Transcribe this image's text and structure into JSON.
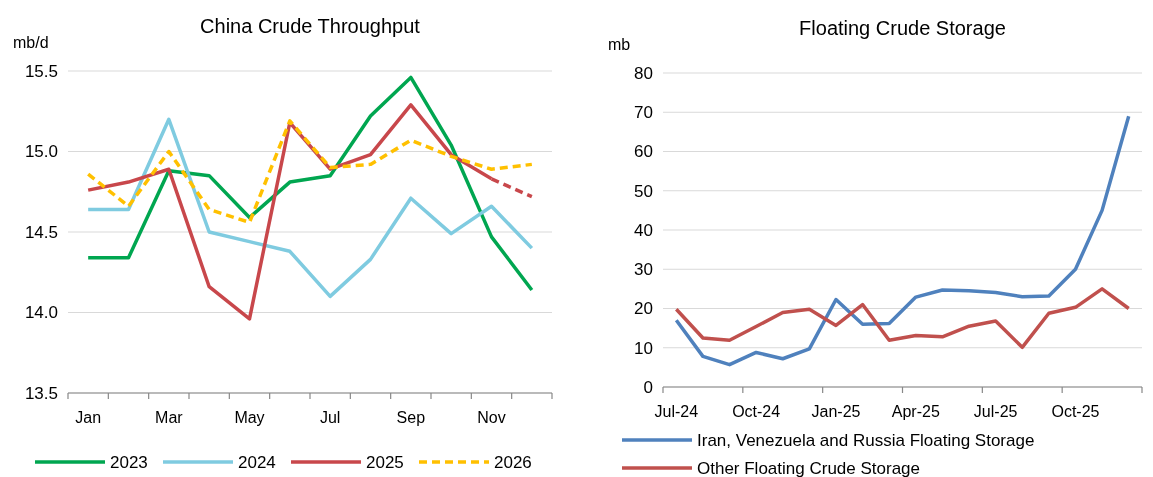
{
  "chart_data": [
    {
      "type": "line",
      "title": "China Crude Throughput",
      "ylabel": "mb/d",
      "categories": [
        "Jan",
        null,
        "Mar",
        null,
        "May",
        null,
        "Jul",
        null,
        "Sep",
        null,
        "Nov",
        null
      ],
      "ylim": [
        13.5,
        15.5
      ],
      "yticks": [
        13.5,
        {
          "value": 14,
          "label": "14.0"
        },
        14.5,
        {
          "value": 15,
          "label": "15.0"
        },
        15.5
      ],
      "grid": "y",
      "legend": "bottom",
      "marker": "none",
      "series": [
        {
          "name": "2023",
          "color": "#00a650",
          "values": [
            14.34,
            14.34,
            14.88,
            14.85,
            14.59,
            14.81,
            14.85,
            15.22,
            15.46,
            15.04,
            14.47,
            14.14
          ]
        },
        {
          "name": "2024",
          "color": "#7fcbe0",
          "values": [
            14.64,
            14.64,
            15.2,
            14.5,
            14.44,
            14.38,
            14.1,
            14.33,
            14.71,
            14.49,
            14.66,
            14.4
          ]
        },
        {
          "name": "2025",
          "color": "#c8474b",
          "values": [
            14.76,
            14.81,
            14.89,
            14.16,
            13.96,
            15.18,
            14.89,
            14.98,
            15.29,
            14.98,
            14.83,
            null
          ]
        },
        {
          "color": "#c8474b",
          "line_style": "dashed",
          "values": [
            null,
            null,
            null,
            null,
            null,
            null,
            null,
            null,
            null,
            null,
            14.83,
            14.72
          ]
        },
        {
          "name": "2026",
          "color": "#ffc000",
          "line_style": "dashed",
          "values": [
            14.86,
            14.66,
            15.0,
            14.64,
            14.56,
            15.19,
            14.9,
            14.92,
            15.07,
            14.97,
            14.89,
            14.92
          ]
        }
      ]
    },
    {
      "type": "line",
      "title": "Floating Crude Storage",
      "ylabel": "mb",
      "categories": [
        "Jul-24",
        null,
        null,
        "Oct-24",
        null,
        null,
        "Jan-25",
        null,
        null,
        "Apr-25",
        null,
        null,
        "Jul-25",
        null,
        null,
        "Oct-25",
        null,
        null
      ],
      "ylim": [
        0,
        80
      ],
      "yticks": [
        0,
        10,
        20,
        30,
        40,
        50,
        60,
        70,
        80
      ],
      "grid": "y",
      "legend": "bottom",
      "marker": "none",
      "series": [
        {
          "name": "Iran, Venezuela and Russia Floating Storage",
          "color": "#4f81bd",
          "values": [
            17.0,
            7.8,
            5.7,
            8.8,
            7.2,
            9.7,
            22.3,
            16.0,
            16.2,
            22.9,
            24.7,
            24.5,
            24.1,
            23.0,
            23.2,
            30.0,
            45.0,
            69.0
          ]
        },
        {
          "name": "Other Floating Crude Storage",
          "color": "#c0504d",
          "values": [
            19.8,
            12.5,
            11.9,
            15.4,
            19.0,
            19.8,
            15.7,
            21.0,
            11.9,
            13.1,
            12.8,
            15.5,
            16.8,
            10.1,
            18.8,
            20.3,
            25.0,
            20.0
          ]
        }
      ]
    }
  ]
}
